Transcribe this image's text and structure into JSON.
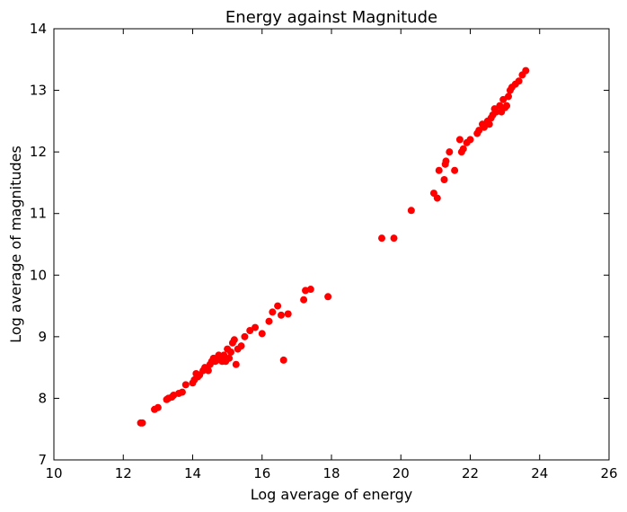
{
  "chart_data": {
    "type": "scatter",
    "title": "Energy against Magnitude",
    "xlabel": "Log average of energy",
    "ylabel": "Log average of magnitudes",
    "xlim": [
      10,
      26
    ],
    "ylim": [
      7,
      14
    ],
    "xticks": [
      "10",
      "12",
      "14",
      "16",
      "18",
      "20",
      "22",
      "24",
      "26"
    ],
    "yticks": [
      "7",
      "8",
      "9",
      "10",
      "11",
      "12",
      "13",
      "14"
    ],
    "grid": false,
    "legend": "none",
    "point_color": "#ff0000",
    "series": [
      {
        "x": [
          12.5,
          12.55,
          12.9,
          13.0,
          13.25,
          13.3,
          13.4,
          13.45,
          13.6,
          13.7,
          13.8,
          14.0,
          14.05,
          14.1,
          14.15,
          14.2,
          14.3,
          14.35,
          14.45,
          14.5,
          14.55,
          14.6,
          14.65,
          14.7,
          14.75,
          14.8,
          14.85,
          14.9,
          14.95,
          15.0,
          15.05,
          15.1,
          15.15,
          15.2,
          15.25,
          15.3,
          15.4,
          15.5,
          15.65,
          15.8,
          16.0,
          16.2,
          16.3,
          16.45,
          16.55,
          16.62,
          16.75,
          17.2,
          17.25,
          17.4,
          17.9,
          19.45,
          19.8,
          20.3,
          20.95,
          21.05,
          21.1,
          21.25,
          21.28,
          21.3,
          21.4,
          21.55,
          21.7,
          21.75,
          21.8,
          21.9,
          22.0,
          22.2,
          22.25,
          22.35,
          22.4,
          22.5,
          22.55,
          22.6,
          22.65,
          22.7,
          22.75,
          22.85,
          22.9,
          22.95,
          23.0,
          23.05,
          23.1,
          23.15,
          23.2,
          23.3,
          23.4,
          23.5,
          23.6
        ],
        "y": [
          7.6,
          7.6,
          7.82,
          7.85,
          7.98,
          8.0,
          8.02,
          8.05,
          8.08,
          8.1,
          8.22,
          8.25,
          8.3,
          8.4,
          8.35,
          8.38,
          8.45,
          8.5,
          8.45,
          8.55,
          8.6,
          8.65,
          8.6,
          8.62,
          8.7,
          8.65,
          8.6,
          8.7,
          8.6,
          8.8,
          8.65,
          8.75,
          8.9,
          8.95,
          8.55,
          8.8,
          8.85,
          9.0,
          9.1,
          9.15,
          9.05,
          9.25,
          9.4,
          9.5,
          9.35,
          8.62,
          9.37,
          9.6,
          9.75,
          9.77,
          9.65,
          10.6,
          10.6,
          11.05,
          11.33,
          11.25,
          11.7,
          11.55,
          11.8,
          11.85,
          12.0,
          11.7,
          12.2,
          12.0,
          12.05,
          12.15,
          12.2,
          12.3,
          12.35,
          12.45,
          12.4,
          12.5,
          12.45,
          12.55,
          12.6,
          12.7,
          12.65,
          12.75,
          12.65,
          12.85,
          12.72,
          12.75,
          12.9,
          13.0,
          13.05,
          13.1,
          13.15,
          13.25,
          13.32
        ]
      }
    ]
  }
}
